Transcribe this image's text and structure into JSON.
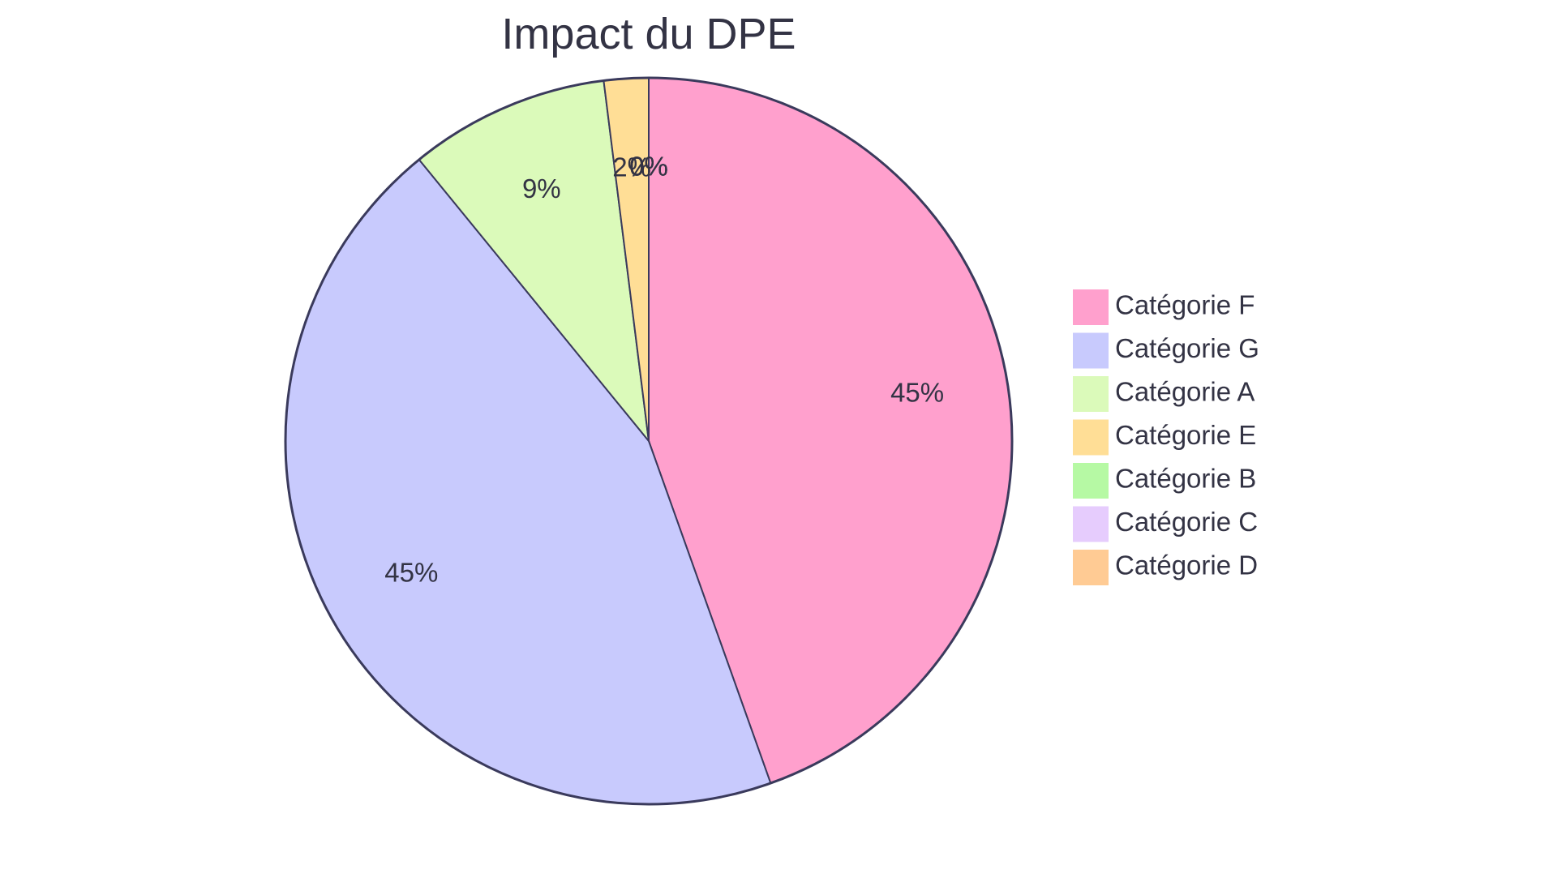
{
  "chart_data": {
    "type": "pie",
    "title": "Impact du DPE",
    "series": [
      {
        "name": "",
        "slices": [
          {
            "label": "Catégorie F",
            "value": 45,
            "display": "45%",
            "color": "#FFA0CD"
          },
          {
            "label": "Catégorie G",
            "value": 45,
            "display": "45%",
            "color": "#C8CAFD"
          },
          {
            "label": "Catégorie A",
            "value": 9,
            "display": "9%",
            "color": "#DBFABA"
          },
          {
            "label": "Catégorie E",
            "value": 2,
            "display": "2%",
            "color": "#FFDE96"
          },
          {
            "label": "Catégorie B",
            "value": 0,
            "display": "0%",
            "color": "#B6F9A4"
          },
          {
            "label": "Catégorie C",
            "value": 0,
            "display": "0%",
            "color": "#E6CCFD"
          },
          {
            "label": "Catégorie D",
            "value": 0,
            "display": "0%",
            "color": "#FFCB94"
          }
        ]
      }
    ],
    "legend_placement": "right",
    "stroke_color": "#3A3A5C"
  }
}
